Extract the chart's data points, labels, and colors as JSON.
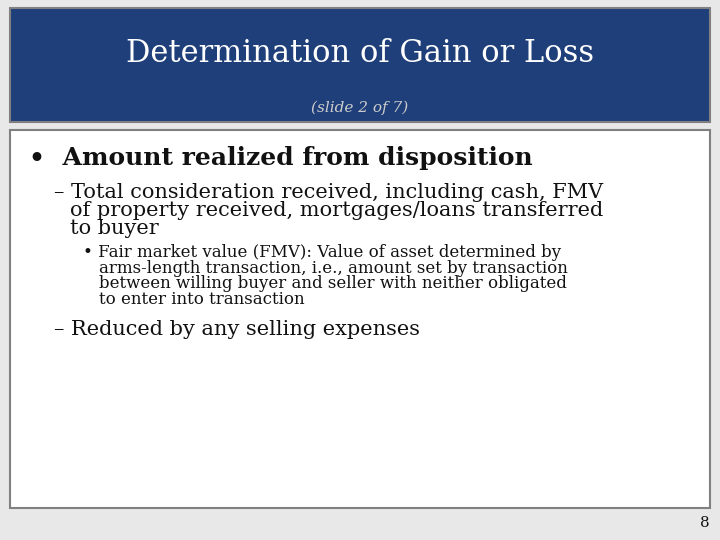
{
  "title": "Determination of Gain or Loss",
  "subtitle": "(slide 2 of 7)",
  "title_bg_color": "#1F3F7A",
  "title_text_color": "#FFFFFF",
  "subtitle_text_color": "#CCCCCC",
  "body_bg_color": "#FFFFFF",
  "border_color": "#808080",
  "slide_bg_color": "#E8E8E8",
  "page_number": "8",
  "bullet1": "Amount realized from disposition",
  "dash1_line1": "– Total consideration received, including cash, FMV",
  "dash1_line2": "of property received, mortgages/loans transferred",
  "dash1_line3": "to buyer",
  "bullet2_line1": "• Fair market value (FMV): Value of asset determined by",
  "bullet2_line2": "arms-length transaction, i.e., amount set by transaction",
  "bullet2_line3": "between willing buyer and seller with neither obligated",
  "bullet2_line4": "to enter into transaction",
  "dash2": "– Reduced by any selling expenses",
  "font_family": "DejaVu Serif",
  "title_fontsize": 22,
  "subtitle_fontsize": 11,
  "bullet1_fontsize": 18,
  "dash1_fontsize": 15,
  "bullet2_fontsize": 12,
  "dash2_fontsize": 15,
  "body_text_color": "#111111"
}
